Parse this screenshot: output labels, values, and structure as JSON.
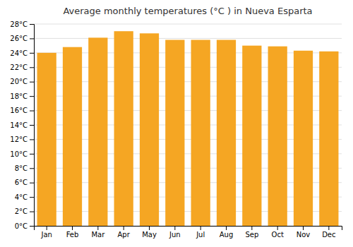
{
  "chart_data": {
    "type": "bar",
    "title": "Average monthly temperatures (°C ) in Nueva Esparta",
    "categories": [
      "Jan",
      "Feb",
      "Mar",
      "Apr",
      "May",
      "Jun",
      "Jul",
      "Aug",
      "Sep",
      "Oct",
      "Nov",
      "Dec"
    ],
    "values": [
      24.0,
      24.8,
      26.1,
      27.0,
      26.7,
      25.8,
      25.8,
      25.8,
      25.0,
      24.9,
      24.3,
      24.2
    ],
    "color": "#F5A623",
    "ylim": [
      0,
      28
    ],
    "yticks": [
      {
        "value": 0,
        "label": "0°C"
      },
      {
        "value": 2,
        "label": "2°C"
      },
      {
        "value": 4,
        "label": "4°C"
      },
      {
        "value": 6,
        "label": "6°C"
      },
      {
        "value": 8,
        "label": "8°C"
      },
      {
        "value": 10,
        "label": "10°C"
      },
      {
        "value": 12,
        "label": "12°C"
      },
      {
        "value": 14,
        "label": "14°C"
      },
      {
        "value": 16,
        "label": "16°C"
      },
      {
        "value": 18,
        "label": "18°C"
      },
      {
        "value": 20,
        "label": "20°C"
      },
      {
        "value": 22,
        "label": "22°C"
      },
      {
        "value": 24,
        "label": "24°C"
      },
      {
        "value": 26,
        "label": "26°C"
      },
      {
        "value": 28,
        "label": "28°C"
      }
    ],
    "grid": true
  }
}
